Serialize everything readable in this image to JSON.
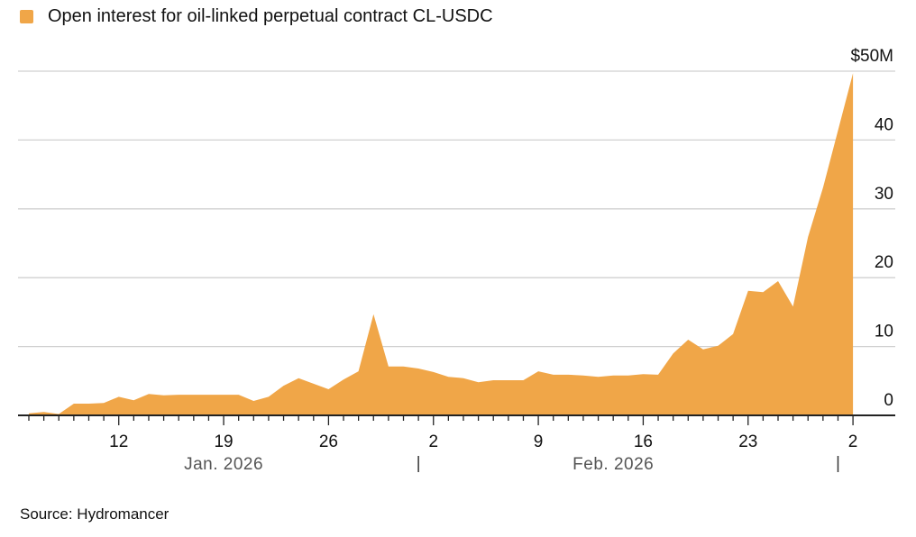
{
  "chart_data": {
    "type": "area",
    "title": "",
    "legend": [
      {
        "label": "Open interest for oil-linked perpetual contract CL-USDC",
        "color": "#F0A648"
      }
    ],
    "legend_placement": "top-left",
    "ylim": [
      0,
      50
    ],
    "y_ticks": [
      0,
      10,
      20,
      30,
      40,
      50
    ],
    "y_tick_labels": [
      "0",
      "10",
      "20",
      "30",
      "40",
      "$50M"
    ],
    "y_axis_side": "right",
    "grid": true,
    "x_start": "2026-01-06",
    "x_tick_labels": [
      {
        "date": "2026-01-12",
        "label": "12"
      },
      {
        "date": "2026-01-19",
        "label": "19"
      },
      {
        "date": "2026-01-26",
        "label": "26"
      },
      {
        "date": "2026-02-02",
        "label": "2"
      },
      {
        "date": "2026-02-09",
        "label": "9"
      },
      {
        "date": "2026-02-16",
        "label": "16"
      },
      {
        "date": "2026-02-23",
        "label": "23"
      },
      {
        "date": "2026-03-02",
        "label": "2"
      }
    ],
    "month_labels": [
      {
        "label": "Jan. 2026",
        "center": "2026-01-19"
      },
      {
        "label": "Feb. 2026",
        "center": "2026-02-14"
      }
    ],
    "month_separators": [
      "2026-02-01",
      "2026-03-01"
    ],
    "series": [
      {
        "color": "#F0A648",
        "x": [
          "2026-01-06",
          "2026-01-07",
          "2026-01-08",
          "2026-01-09",
          "2026-01-10",
          "2026-01-11",
          "2026-01-12",
          "2026-01-13",
          "2026-01-14",
          "2026-01-15",
          "2026-01-16",
          "2026-01-17",
          "2026-01-18",
          "2026-01-19",
          "2026-01-20",
          "2026-01-21",
          "2026-01-22",
          "2026-01-23",
          "2026-01-24",
          "2026-01-25",
          "2026-01-26",
          "2026-01-27",
          "2026-01-28",
          "2026-01-29",
          "2026-01-30",
          "2026-01-31",
          "2026-02-01",
          "2026-02-02",
          "2026-02-03",
          "2026-02-04",
          "2026-02-05",
          "2026-02-06",
          "2026-02-07",
          "2026-02-08",
          "2026-02-09",
          "2026-02-10",
          "2026-02-11",
          "2026-02-12",
          "2026-02-13",
          "2026-02-14",
          "2026-02-15",
          "2026-02-16",
          "2026-02-17",
          "2026-02-18",
          "2026-02-19",
          "2026-02-20",
          "2026-02-21",
          "2026-02-22",
          "2026-02-23",
          "2026-02-24",
          "2026-02-25",
          "2026-02-26",
          "2026-02-27",
          "2026-02-28",
          "2026-03-01",
          "2026-03-02"
        ],
        "values": [
          0.3,
          0.5,
          0.2,
          1.7,
          1.7,
          1.8,
          2.7,
          2.2,
          3.1,
          2.9,
          3.0,
          3.0,
          3.0,
          3.0,
          3.0,
          2.1,
          2.7,
          4.3,
          5.4,
          4.6,
          3.8,
          5.2,
          6.4,
          14.7,
          7.1,
          7.1,
          6.8,
          6.3,
          5.6,
          5.4,
          4.8,
          5.1,
          5.1,
          5.1,
          6.4,
          5.9,
          5.9,
          5.8,
          5.6,
          5.8,
          5.8,
          6.0,
          5.9,
          9.0,
          11.0,
          9.6,
          10.1,
          11.8,
          18.1,
          17.9,
          19.5,
          15.8,
          25.9,
          33.1,
          41.4,
          49.7
        ]
      }
    ]
  },
  "source": "Source: Hydromancer"
}
